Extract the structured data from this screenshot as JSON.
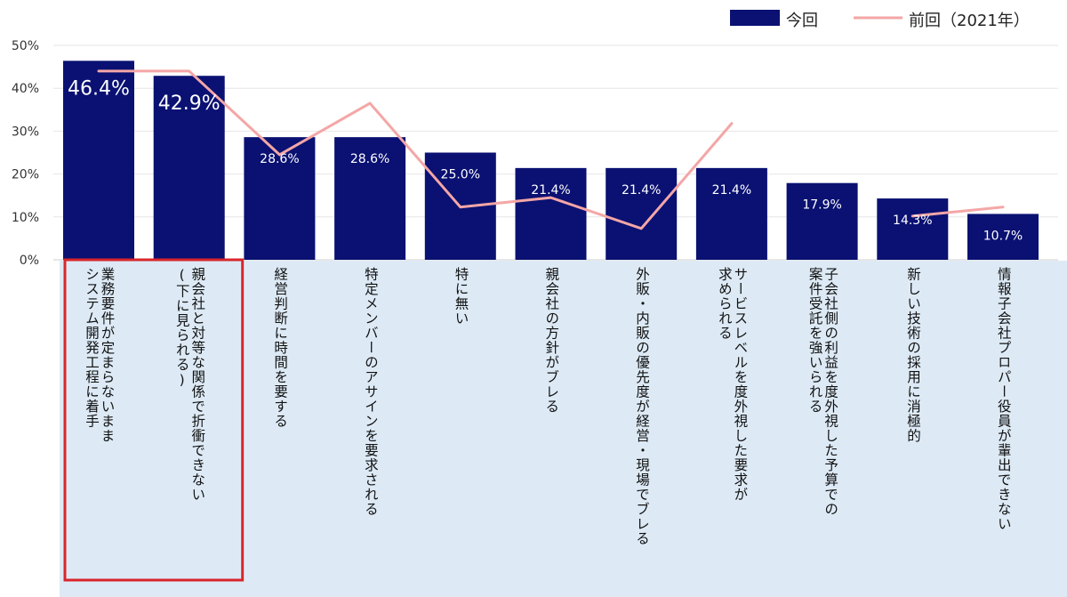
{
  "chart_data": {
    "type": "bar",
    "title": "",
    "xlabel": "",
    "ylabel": "",
    "ylim": [
      0,
      50
    ],
    "yticks": [
      "0%",
      "10%",
      "20%",
      "30%",
      "40%",
      "50%"
    ],
    "grid": true,
    "legend_position": "top-right",
    "categories": [
      [
        "業務要件が定まらないまま",
        "システム開発工程に着手"
      ],
      [
        "親会社と対等な関係で折衝できない",
        "(下に見られる)"
      ],
      [
        "経営判断に時間を要する"
      ],
      [
        "特定メンバーのアサインを要求される"
      ],
      [
        "特に無い"
      ],
      [
        "親会社の方針がブレる"
      ],
      [
        "外販・内販の優先度が経営・現場でブレる"
      ],
      [
        "サービスレベルを度外視した要求が",
        "求められる"
      ],
      [
        "子会社側の利益を度外視した予算での",
        "案件受託を強いられる"
      ],
      [
        "新しい技術の採用に消極的"
      ],
      [
        "情報子会社プロパー役員が輩出できない"
      ]
    ],
    "series": [
      {
        "name": "今回",
        "kind": "bar",
        "color": "#0a1172",
        "values": [
          46.4,
          42.9,
          28.6,
          28.6,
          25.0,
          21.4,
          21.4,
          21.4,
          17.9,
          14.3,
          10.7
        ],
        "labels": [
          "46.4%",
          "42.9%",
          "28.6%",
          "28.6%",
          "25.0%",
          "21.4%",
          "21.4%",
          "21.4%",
          "17.9%",
          "14.3%",
          "10.7%"
        ]
      },
      {
        "name": "前回（2021年）",
        "kind": "line",
        "color": "#f4a6a6",
        "values": [
          44.0,
          44.0,
          24.5,
          36.5,
          12.3,
          14.5,
          7.3,
          31.8,
          null,
          10.2,
          12.3
        ]
      }
    ],
    "highlight_categories": [
      0,
      1
    ],
    "highlight_color": "#d9262b",
    "label_band_color": "#ddeaf6"
  }
}
